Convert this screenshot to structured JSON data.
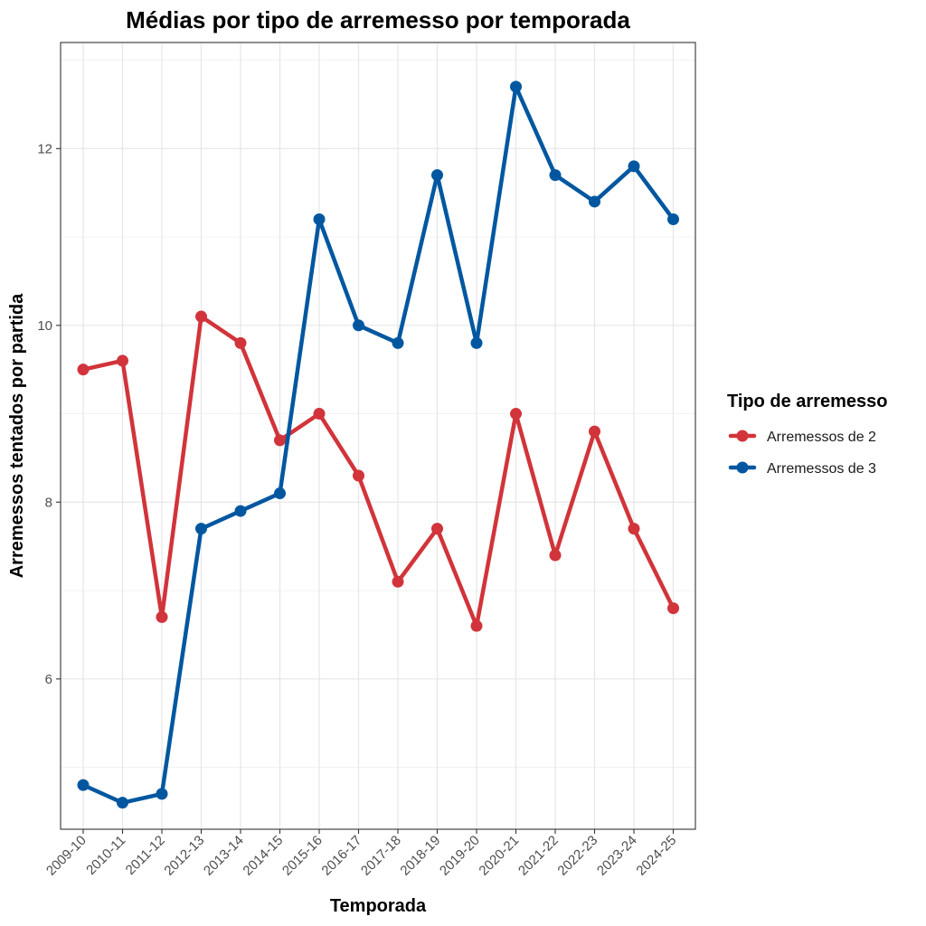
{
  "chart_data": {
    "type": "line",
    "title": "Médias por tipo de arremesso por temporada",
    "xlabel": "Temporada",
    "ylabel": "Arremessos tentados por partida",
    "categories": [
      "2009-10",
      "2010-11",
      "2011-12",
      "2012-13",
      "2013-14",
      "2014-15",
      "2015-16",
      "2016-17",
      "2017-18",
      "2018-19",
      "2019-20",
      "2020-21",
      "2021-22",
      "2022-23",
      "2023-24",
      "2024-25"
    ],
    "yticks": [
      "6",
      "8",
      "10",
      "12"
    ],
    "ylim": [
      4.3,
      13.2
    ],
    "grid": true,
    "legend": {
      "title": "Tipo de arremesso",
      "position": "right"
    },
    "series": [
      {
        "name": "Arremessos de 2",
        "color": "#d1343a",
        "values": [
          9.5,
          9.6,
          6.7,
          10.1,
          9.8,
          8.7,
          9.0,
          8.3,
          7.1,
          7.7,
          6.6,
          9.0,
          7.4,
          8.8,
          7.7,
          6.8
        ]
      },
      {
        "name": "Arremessos de 3",
        "color": "#0057a0",
        "values": [
          4.8,
          4.6,
          4.7,
          7.7,
          7.9,
          8.1,
          11.2,
          10.0,
          9.8,
          11.7,
          9.8,
          12.7,
          11.7,
          11.4,
          11.8,
          11.2
        ]
      }
    ]
  }
}
